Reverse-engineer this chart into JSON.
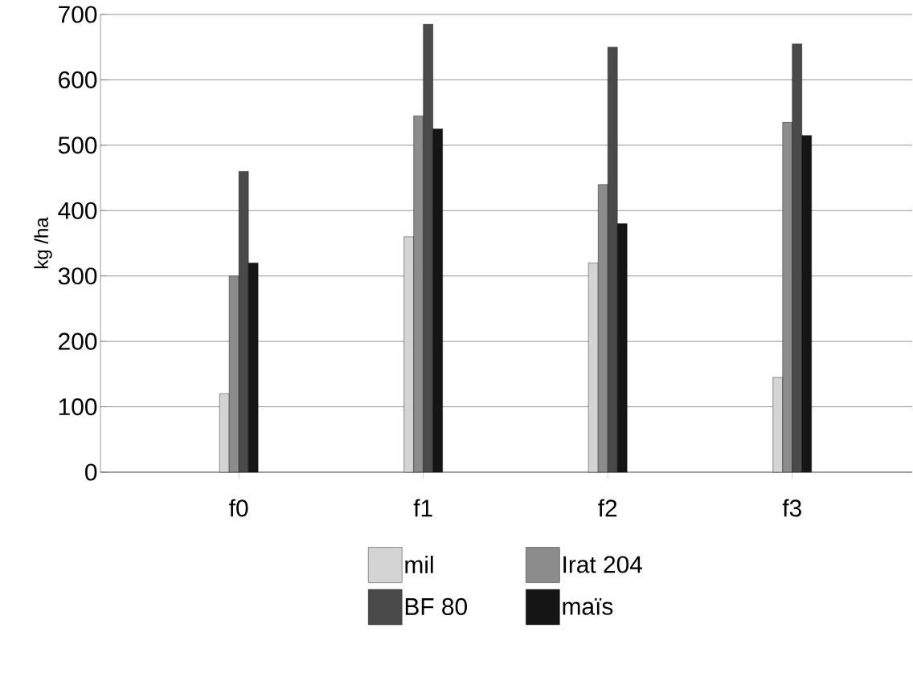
{
  "chart_data": {
    "type": "bar",
    "ylabel": "kg /ha",
    "categories": [
      "f0",
      "f1",
      "f2",
      "f3"
    ],
    "series": [
      {
        "name": "mil",
        "color": "#d4d4d4",
        "values": [
          120,
          360,
          320,
          145
        ]
      },
      {
        "name": "Irat 204",
        "color": "#8c8c8c",
        "values": [
          300,
          545,
          440,
          535
        ]
      },
      {
        "name": "BF 80",
        "color": "#4a4a4a",
        "values": [
          460,
          685,
          650,
          655
        ]
      },
      {
        "name": "maïs",
        "color": "#151515",
        "values": [
          320,
          525,
          380,
          515
        ]
      }
    ],
    "ylim": [
      0,
      700
    ],
    "yticks": [
      0,
      100,
      200,
      300,
      400,
      500,
      600,
      700
    ],
    "grid": "y",
    "legend": "bottom"
  }
}
